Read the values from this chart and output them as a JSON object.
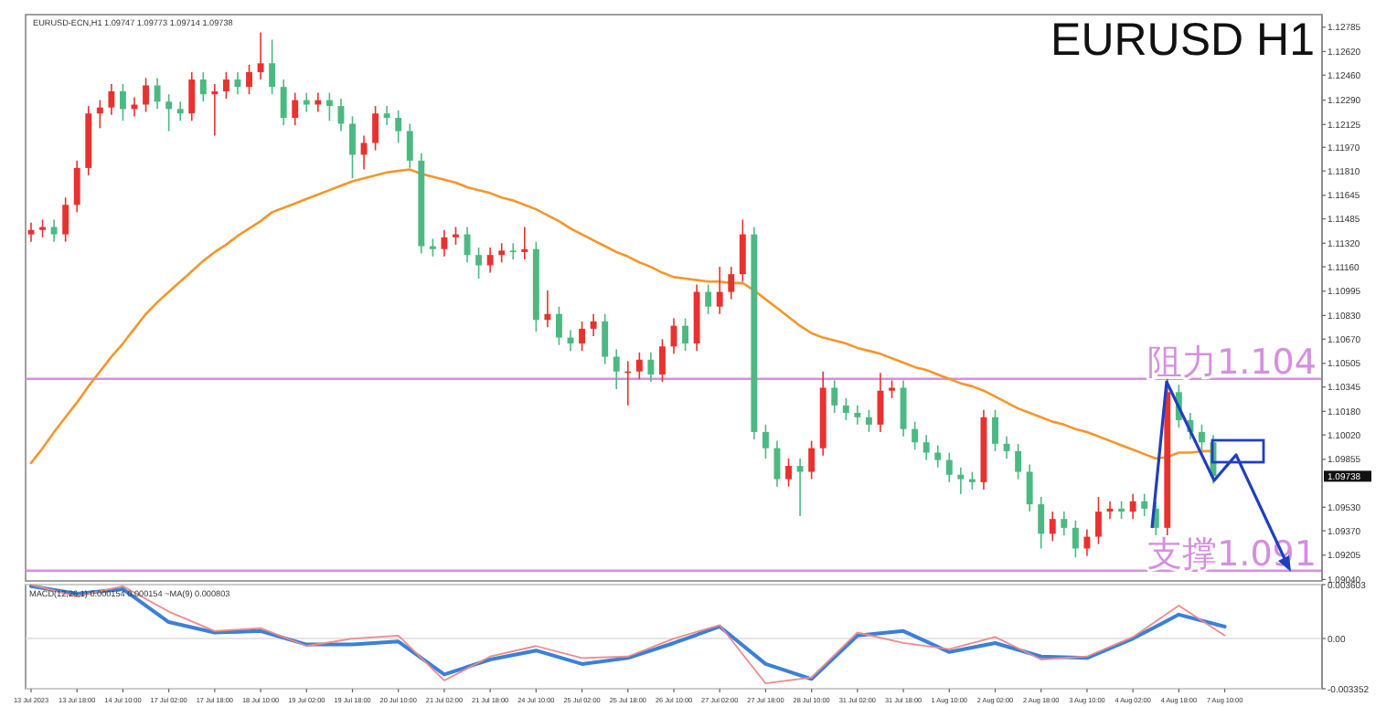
{
  "chart_data": [
    {
      "type": "candlestick",
      "title": "EURUSD H1",
      "categories": [
        null,
        null,
        null,
        null,
        null,
        null,
        null,
        null,
        null,
        null,
        null,
        null,
        null,
        null,
        null,
        null,
        null,
        null,
        null,
        null,
        null,
        null,
        null,
        null,
        null,
        null,
        null,
        null,
        null,
        null,
        null,
        null,
        null,
        null,
        null,
        null,
        null,
        null,
        null,
        null,
        null,
        null,
        null,
        null,
        null,
        null,
        null,
        null,
        null,
        null,
        null,
        null,
        null,
        null,
        null,
        null,
        null,
        null,
        null,
        null,
        null,
        null,
        null,
        null,
        null,
        null,
        null,
        null,
        null,
        null,
        null,
        null,
        null,
        null,
        null,
        null,
        null,
        null,
        null,
        null,
        null,
        null,
        null,
        null,
        null,
        null,
        null,
        null,
        null,
        null,
        null,
        null,
        null,
        null,
        null,
        null,
        null,
        null,
        null,
        null,
        null,
        null,
        null,
        null,
        null,
        null,
        null,
        null,
        null,
        null,
        null,
        null,
        null
      ],
      "ohlc": [
        [
          1.1138,
          1.1146,
          1.1133,
          1.1141
        ],
        [
          1.1141,
          1.1148,
          1.1136,
          1.1143
        ],
        [
          1.1143,
          1.1148,
          1.1133,
          1.1138
        ],
        [
          1.1138,
          1.1163,
          1.1133,
          1.1158
        ],
        [
          1.1158,
          1.1188,
          1.1153,
          1.1183
        ],
        [
          1.1183,
          1.1225,
          1.1178,
          1.122
        ],
        [
          1.122,
          1.1229,
          1.121,
          1.1224
        ],
        [
          1.1224,
          1.124,
          1.1219,
          1.1235
        ],
        [
          1.1235,
          1.124,
          1.1215,
          1.1223
        ],
        [
          1.1223,
          1.1231,
          1.1218,
          1.1226
        ],
        [
          1.1226,
          1.1244,
          1.1221,
          1.1239
        ],
        [
          1.1239,
          1.1244,
          1.1223,
          1.1228
        ],
        [
          1.1228,
          1.1233,
          1.1208,
          1.1223
        ],
        [
          1.1223,
          1.1228,
          1.1215,
          1.122
        ],
        [
          1.122,
          1.1248,
          1.1215,
          1.1243
        ],
        [
          1.1243,
          1.1248,
          1.1228,
          1.1233
        ],
        [
          1.1233,
          1.124,
          1.1205,
          1.1235
        ],
        [
          1.1235,
          1.1248,
          1.123,
          1.1243
        ],
        [
          1.1243,
          1.1248,
          1.1233,
          1.1238
        ],
        [
          1.1238,
          1.1253,
          1.1233,
          1.1248
        ],
        [
          1.1248,
          1.1275,
          1.1243,
          1.1254
        ],
        [
          1.1254,
          1.127,
          1.1233,
          1.1238
        ],
        [
          1.1238,
          1.1243,
          1.1212,
          1.1217
        ],
        [
          1.1217,
          1.1234,
          1.1212,
          1.1229
        ],
        [
          1.1229,
          1.1234,
          1.1221,
          1.1226
        ],
        [
          1.1226,
          1.1234,
          1.1221,
          1.1229
        ],
        [
          1.1229,
          1.1234,
          1.1215,
          1.1225
        ],
        [
          1.1225,
          1.123,
          1.1208,
          1.1213
        ],
        [
          1.1213,
          1.1218,
          1.1176,
          1.1192
        ],
        [
          1.1192,
          1.1205,
          1.1182,
          1.12
        ],
        [
          1.12,
          1.1225,
          1.1195,
          1.122
        ],
        [
          1.122,
          1.1225,
          1.1212,
          1.1217
        ],
        [
          1.1217,
          1.1222,
          1.12,
          1.1208
        ],
        [
          1.1208,
          1.1213,
          1.1183,
          1.1188
        ],
        [
          1.1188,
          1.1193,
          1.1125,
          1.113
        ],
        [
          1.113,
          1.1135,
          1.1123,
          1.1128
        ],
        [
          1.1128,
          1.1141,
          1.1123,
          1.1136
        ],
        [
          1.1136,
          1.1143,
          1.1131,
          1.1138
        ],
        [
          1.1138,
          1.1143,
          1.1119,
          1.1124
        ],
        [
          1.1124,
          1.1129,
          1.1108,
          1.1117
        ],
        [
          1.1117,
          1.1129,
          1.1112,
          1.1124
        ],
        [
          1.1124,
          1.1132,
          1.1119,
          1.1127
        ],
        [
          1.1127,
          1.1132,
          1.1121,
          1.1126
        ],
        [
          1.1126,
          1.1143,
          1.1121,
          1.1128
        ],
        [
          1.1128,
          1.1133,
          1.1072,
          1.108
        ],
        [
          1.108,
          1.11,
          1.1075,
          1.1084
        ],
        [
          1.1084,
          1.1089,
          1.1063,
          1.1068
        ],
        [
          1.1068,
          1.1073,
          1.1059,
          1.1064
        ],
        [
          1.1064,
          1.1079,
          1.1059,
          1.1074
        ],
        [
          1.1074,
          1.1084,
          1.1069,
          1.1079
        ],
        [
          1.1079,
          1.1084,
          1.105,
          1.1055
        ],
        [
          1.1055,
          1.106,
          1.1033,
          1.1045
        ],
        [
          1.1045,
          1.1052,
          1.1022,
          1.1045
        ],
        [
          1.1045,
          1.1058,
          1.104,
          1.1053
        ],
        [
          1.1053,
          1.1058,
          1.1038,
          1.1043
        ],
        [
          1.1043,
          1.1067,
          1.1038,
          1.1062
        ],
        [
          1.1062,
          1.1081,
          1.1057,
          1.1076
        ],
        [
          1.1076,
          1.1081,
          1.1059,
          1.1064
        ],
        [
          1.1064,
          1.1104,
          1.1059,
          1.1099
        ],
        [
          1.1099,
          1.1104,
          1.1084,
          1.1089
        ],
        [
          1.1089,
          1.1116,
          1.1084,
          1.1099
        ],
        [
          1.1099,
          1.1116,
          1.1094,
          1.1111
        ],
        [
          1.1111,
          1.1148,
          1.1106,
          1.1138
        ],
        [
          1.1138,
          1.1143,
          1.0999,
          1.1004
        ],
        [
          1.1004,
          1.1009,
          1.0986,
          1.0993
        ],
        [
          1.0993,
          1.0998,
          1.0967,
          1.0972
        ],
        [
          1.0972,
          1.0986,
          1.0967,
          1.0981
        ],
        [
          1.0981,
          1.0986,
          1.0947,
          1.0977
        ],
        [
          1.0977,
          1.0998,
          1.0972,
          1.0993
        ],
        [
          1.0993,
          1.1045,
          1.0988,
          1.1034
        ],
        [
          1.1034,
          1.1039,
          1.1017,
          1.1022
        ],
        [
          1.1022,
          1.1027,
          1.1012,
          1.1017
        ],
        [
          1.1017,
          1.1022,
          1.1009,
          1.1014
        ],
        [
          1.1014,
          1.1019,
          1.1004,
          1.1009
        ],
        [
          1.1009,
          1.1044,
          1.1004,
          1.1032
        ],
        [
          1.1032,
          1.1039,
          1.1027,
          1.1034
        ],
        [
          1.1034,
          1.1039,
          1.1001,
          1.1006
        ],
        [
          1.1006,
          1.1011,
          1.0992,
          1.0997
        ],
        [
          1.0997,
          1.1002,
          1.0985,
          1.099
        ],
        [
          1.099,
          1.0995,
          1.098,
          1.0985
        ],
        [
          1.0985,
          1.099,
          1.097,
          1.0975
        ],
        [
          1.0975,
          1.098,
          1.0962,
          1.0972
        ],
        [
          1.0972,
          1.0977,
          1.0965,
          1.097
        ],
        [
          1.097,
          1.1019,
          1.0965,
          1.1014
        ],
        [
          1.1014,
          1.1019,
          1.0991,
          1.0996
        ],
        [
          1.0996,
          1.1001,
          1.0986,
          1.0991
        ],
        [
          1.0991,
          1.0996,
          1.0972,
          1.0977
        ],
        [
          1.0977,
          1.0982,
          1.095,
          1.0955
        ],
        [
          1.0955,
          1.096,
          1.0925,
          1.0935
        ],
        [
          1.0935,
          1.095,
          1.093,
          1.0945
        ],
        [
          1.0945,
          1.095,
          1.0934,
          1.0939
        ],
        [
          1.0939,
          1.0944,
          1.0919,
          1.0925
        ],
        [
          1.0925,
          1.0938,
          1.092,
          1.0933
        ],
        [
          1.0933,
          1.096,
          1.0928,
          1.095
        ],
        [
          1.095,
          1.0957,
          1.0945,
          1.0952
        ],
        [
          1.0952,
          1.0957,
          1.0945,
          1.095
        ],
        [
          1.095,
          1.0962,
          1.0945,
          1.0957
        ],
        [
          1.0957,
          1.0962,
          1.0947,
          1.0952
        ],
        [
          1.0952,
          1.0957,
          1.0934,
          1.0939
        ],
        [
          1.0939,
          1.104,
          1.0934,
          1.1031
        ],
        [
          1.1031,
          1.1036,
          1.1007,
          1.1012
        ],
        [
          1.1012,
          1.1017,
          1.0999,
          1.1004
        ],
        [
          1.1004,
          1.1009,
          1.0992,
          1.0997
        ],
        [
          1.0997,
          1.1002,
          1.0969,
          1.0974
        ],
        null,
        null,
        null,
        null,
        null,
        null,
        null,
        null,
        null
      ],
      "series": [
        {
          "type": "line",
          "color": "#f5962a",
          "values": [
            1.0983,
            1.0993,
            1.1004,
            1.1014,
            1.1024,
            1.1035,
            1.1045,
            1.1055,
            1.1064,
            1.1074,
            1.1084,
            1.1092,
            1.1099,
            1.1106,
            1.1113,
            1.112,
            1.1126,
            1.1131,
            1.1137,
            1.1142,
            1.1147,
            1.1153,
            1.1156,
            1.1159,
            1.1162,
            1.1165,
            1.1168,
            1.1171,
            1.1174,
            1.1176,
            1.1178,
            1.118,
            1.1181,
            1.1182,
            1.1179,
            1.1177,
            1.1175,
            1.1173,
            1.117,
            1.1168,
            1.1166,
            1.1163,
            1.1161,
            1.1158,
            1.1155,
            1.1151,
            1.1147,
            1.1142,
            1.1138,
            1.1134,
            1.113,
            1.1126,
            1.1123,
            1.1119,
            1.1116,
            1.1112,
            1.1109,
            1.1108,
            1.1107,
            1.1106,
            1.1106,
            1.1105,
            1.1105,
            1.11,
            1.1094,
            1.1088,
            1.1082,
            1.1076,
            1.1071,
            1.1068,
            1.1066,
            1.1064,
            1.1061,
            1.1059,
            1.1057,
            1.1054,
            1.1051,
            1.1048,
            1.1046,
            1.1043,
            1.104,
            1.1037,
            1.1035,
            1.1032,
            1.1028,
            1.1024,
            1.102,
            1.1017,
            1.1014,
            1.1011,
            1.1009,
            1.1006,
            1.1004,
            1.1001,
            1.0998,
            1.0995,
            1.0992,
            1.0989,
            1.0986,
            1.0987,
            1.099,
            1.099,
            1.0991,
            1.0991,
            null,
            null,
            null,
            null,
            null,
            null,
            null,
            null,
            null
          ]
        }
      ],
      "ylim": [
        1.0903,
        1.1287
      ],
      "yticks": [
        1.12785,
        {
          "value": 1.1262,
          "label": "1.12620"
        },
        {
          "value": 1.1246,
          "label": "1.12460"
        },
        {
          "value": 1.1229,
          "label": "1.12290"
        },
        1.12125,
        {
          "value": 1.1197,
          "label": "1.11970"
        },
        {
          "value": 1.1181,
          "label": "1.11810"
        },
        1.11645,
        1.11485,
        {
          "value": 1.1132,
          "label": "1.11320"
        },
        {
          "value": 1.1116,
          "label": "1.11160"
        },
        1.10995,
        {
          "value": 1.1083,
          "label": "1.10830"
        },
        {
          "value": 1.1067,
          "label": "1.10670"
        },
        1.10505,
        1.10345,
        {
          "value": 1.1018,
          "label": "1.10180"
        },
        {
          "value": 1.1002,
          "label": "1.10020"
        },
        1.09855,
        {
          "value": 1.0953,
          "label": "1.09530"
        },
        {
          "value": 1.0937,
          "label": "1.09370"
        },
        1.09205,
        {
          "value": 1.0904,
          "label": "1.09040"
        }
      ],
      "ref_lines": [
        {
          "axis": "y",
          "value": 1.104,
          "label": "阻力1.104",
          "color": "#d58fdf"
        },
        {
          "axis": "y",
          "value": 1.091,
          "label": "支撑1.091",
          "color": "#d58fdf"
        }
      ],
      "annotations": [
        "EURUSD-ECN,H1  1.09747 1.09773 1.09714 1.09738",
        "1.09738"
      ]
    },
    {
      "type": "line",
      "title": "MACD(12,26,1) 0.000154 0.000154 ~MA(9) 0.000803",
      "categories": [
        "13 Jul 2023",
        "13 Jul 18:00",
        "14 Jul 10:00",
        "17 Jul 02:00",
        "17 Jul 18:00",
        "18 Jul 10:00",
        "19 Jul 02:00",
        "19 Jul 18:00",
        "20 Jul 10:00",
        "21 Jul 02:00",
        "21 Jul 18:00",
        "24 Jul 10:00",
        "25 Jul 02:00",
        "25 Jul 18:00",
        "26 Jul 10:00",
        "27 Jul 02:00",
        "27 Jul 18:00",
        "28 Jul 10:00",
        "31 Jul 02:00",
        "31 Jul 18:00",
        "1 Aug 10:00",
        "2 Aug 02:00",
        "2 Aug 18:00",
        "3 Aug 10:00",
        "4 Aug 02:00",
        "4 Aug 18:00",
        "7 Aug 10:00",
        null,
        null
      ],
      "series": [
        {
          "color": "#3a80d8",
          "values": [
            0.0035,
            0.003,
            0.0033,
            0.0011,
            0.0004,
            0.0005,
            -0.0004,
            -0.0004,
            -0.0002,
            -0.0024,
            -0.0014,
            -0.0008,
            -0.0017,
            -0.0013,
            -0.0003,
            0.0008,
            -0.0017,
            -0.0027,
            0.0002,
            0.0005,
            -0.0009,
            -0.0003,
            -0.0012,
            -0.0013,
            0,
            0.0016,
            0.0008,
            null,
            null
          ]
        },
        {
          "color": "#f08a8a",
          "values": [
            0.0036,
            0.0028,
            0.0035,
            0.0018,
            0.0005,
            0.0007,
            -0.0005,
            0,
            0.0002,
            -0.0028,
            -0.0012,
            -0.0005,
            -0.0013,
            -0.0012,
            0,
            0.0009,
            -0.003,
            -0.0026,
            0.0004,
            -0.0003,
            -0.0007,
            0.0001,
            -0.0014,
            -0.0012,
            0.0001,
            0.0022,
            0.0002,
            null,
            null
          ]
        }
      ],
      "ylim": [
        -0.003352,
        0.003603
      ],
      "yticks": [
        0.003603,
        {
          "value": 0,
          "label": "0.00"
        },
        -0.003352
      ],
      "grid": "y"
    }
  ]
}
